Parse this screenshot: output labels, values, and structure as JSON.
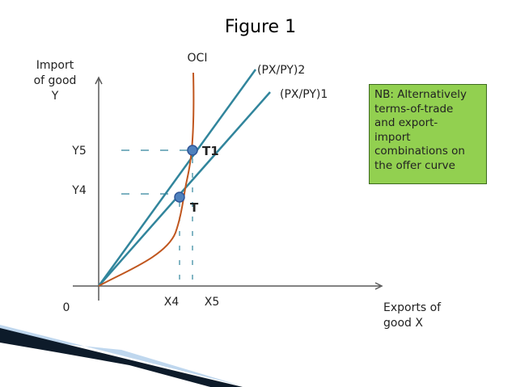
{
  "title": "Figure 1",
  "axes": {
    "y_label_lines": [
      "Import",
      "of good",
      "Y"
    ],
    "x_label_lines": [
      "Exports of",
      "good X"
    ],
    "origin_label": "0"
  },
  "curves": {
    "oci_label": "OCI",
    "tot2_label": "(PX/PY)2",
    "tot1_label": "(PX/PY)1"
  },
  "ticks": {
    "y5": "Y5",
    "y4": "Y4",
    "x4": "X4",
    "x5": "X5"
  },
  "points": {
    "t1": "T1",
    "t": "T"
  },
  "note_lines": [
    "NB: Alternatively",
    "terms-of-trade",
    "and export-",
    "import",
    "combinations on",
    "the offer curve"
  ],
  "colors": {
    "axis": "#595959",
    "tot_lines": "#31859c",
    "offer_curve": "#c0561e",
    "guides": "#31859c",
    "points": "#4f81bd",
    "note_fill": "#92d050",
    "note_border": "#3d6b1e",
    "decor_dark": "#0d1b2a",
    "decor_light": "#bfd7ee"
  }
}
